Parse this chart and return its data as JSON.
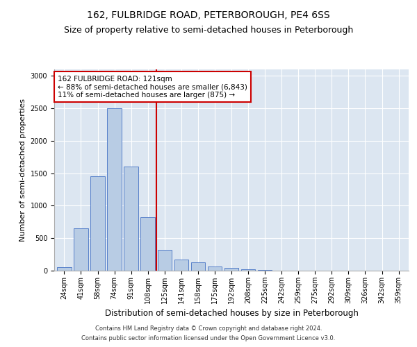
{
  "title1": "162, FULBRIDGE ROAD, PETERBOROUGH, PE4 6SS",
  "title2": "Size of property relative to semi-detached houses in Peterborough",
  "xlabel": "Distribution of semi-detached houses by size in Peterborough",
  "ylabel": "Number of semi-detached properties",
  "categories": [
    "24sqm",
    "41sqm",
    "58sqm",
    "74sqm",
    "91sqm",
    "108sqm",
    "125sqm",
    "141sqm",
    "158sqm",
    "175sqm",
    "192sqm",
    "208sqm",
    "225sqm",
    "242sqm",
    "259sqm",
    "275sqm",
    "292sqm",
    "309sqm",
    "326sqm",
    "342sqm",
    "359sqm"
  ],
  "values": [
    50,
    650,
    1450,
    2500,
    1600,
    825,
    325,
    175,
    125,
    60,
    45,
    25,
    10,
    5,
    5,
    5,
    2,
    2,
    2,
    1,
    1
  ],
  "bar_color": "#b8cce4",
  "bar_edge_color": "#4472c4",
  "highlight_color": "#cc0000",
  "annotation_line1": "162 FULBRIDGE ROAD: 121sqm",
  "annotation_line2": "← 88% of semi-detached houses are smaller (6,843)",
  "annotation_line3": "11% of semi-detached houses are larger (875) →",
  "annotation_box_color": "#ffffff",
  "annotation_box_edge": "#cc0000",
  "ylim": [
    0,
    3100
  ],
  "yticks": [
    0,
    500,
    1000,
    1500,
    2000,
    2500,
    3000
  ],
  "footer1": "Contains HM Land Registry data © Crown copyright and database right 2024.",
  "footer2": "Contains public sector information licensed under the Open Government Licence v3.0.",
  "background_color": "#dce6f1",
  "title1_fontsize": 10,
  "title2_fontsize": 9,
  "tick_fontsize": 7,
  "ylabel_fontsize": 8,
  "xlabel_fontsize": 8.5,
  "annotation_fontsize": 7.5,
  "footer_fontsize": 6
}
